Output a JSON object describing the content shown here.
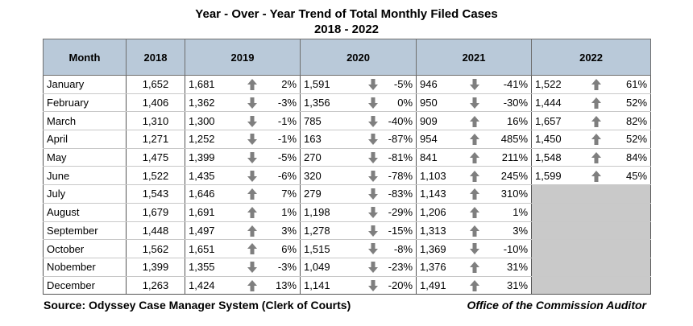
{
  "title": "Year - Over - Year Trend of Total Monthly Filed Cases",
  "subtitle": "2018 - 2022",
  "source": "Source: Odyssey Case Manager System (Clerk of Courts)",
  "auditor": "Office of the Commission Auditor",
  "colors": {
    "header_bg": "#b9c9d9",
    "arrow": "#7f7f7f",
    "blank_cell": "#c9c9c9"
  },
  "chart_data": {
    "type": "table",
    "columns": [
      "Month",
      "2018",
      "2019",
      "2020",
      "2021",
      "2022"
    ],
    "rows": [
      {
        "month": "January",
        "2018": "1,652",
        "2019": {
          "v": "1,681",
          "dir": "up",
          "pct": "2%"
        },
        "2020": {
          "v": "1,591",
          "dir": "down",
          "pct": "-5%"
        },
        "2021": {
          "v": "946",
          "dir": "down",
          "pct": "-41%"
        },
        "2022": {
          "v": "1,522",
          "dir": "up",
          "pct": "61%"
        }
      },
      {
        "month": "February",
        "2018": "1,406",
        "2019": {
          "v": "1,362",
          "dir": "down",
          "pct": "-3%"
        },
        "2020": {
          "v": "1,356",
          "dir": "down",
          "pct": "0%"
        },
        "2021": {
          "v": "950",
          "dir": "down",
          "pct": "-30%"
        },
        "2022": {
          "v": "1,444",
          "dir": "up",
          "pct": "52%"
        }
      },
      {
        "month": "March",
        "2018": "1,310",
        "2019": {
          "v": "1,300",
          "dir": "down",
          "pct": "-1%"
        },
        "2020": {
          "v": "785",
          "dir": "down",
          "pct": "-40%"
        },
        "2021": {
          "v": "909",
          "dir": "up",
          "pct": "16%"
        },
        "2022": {
          "v": "1,657",
          "dir": "up",
          "pct": "82%"
        }
      },
      {
        "month": "April",
        "2018": "1,271",
        "2019": {
          "v": "1,252",
          "dir": "down",
          "pct": "-1%"
        },
        "2020": {
          "v": "163",
          "dir": "down",
          "pct": "-87%"
        },
        "2021": {
          "v": "954",
          "dir": "up",
          "pct": "485%"
        },
        "2022": {
          "v": "1,450",
          "dir": "up",
          "pct": "52%"
        }
      },
      {
        "month": "May",
        "2018": "1,475",
        "2019": {
          "v": "1,399",
          "dir": "down",
          "pct": "-5%"
        },
        "2020": {
          "v": "270",
          "dir": "down",
          "pct": "-81%"
        },
        "2021": {
          "v": "841",
          "dir": "up",
          "pct": "211%"
        },
        "2022": {
          "v": "1,548",
          "dir": "up",
          "pct": "84%"
        }
      },
      {
        "month": "June",
        "2018": "1,522",
        "2019": {
          "v": "1,435",
          "dir": "down",
          "pct": "-6%"
        },
        "2020": {
          "v": "320",
          "dir": "down",
          "pct": "-78%"
        },
        "2021": {
          "v": "1,103",
          "dir": "up",
          "pct": "245%"
        },
        "2022": {
          "v": "1,599",
          "dir": "up",
          "pct": "45%"
        }
      },
      {
        "month": "July",
        "2018": "1,543",
        "2019": {
          "v": "1,646",
          "dir": "up",
          "pct": "7%"
        },
        "2020": {
          "v": "279",
          "dir": "down",
          "pct": "-83%"
        },
        "2021": {
          "v": "1,143",
          "dir": "up",
          "pct": "310%"
        },
        "2022": null
      },
      {
        "month": "August",
        "2018": "1,679",
        "2019": {
          "v": "1,691",
          "dir": "up",
          "pct": "1%"
        },
        "2020": {
          "v": "1,198",
          "dir": "down",
          "pct": "-29%"
        },
        "2021": {
          "v": "1,206",
          "dir": "up",
          "pct": "1%"
        },
        "2022": null
      },
      {
        "month": "September",
        "2018": "1,448",
        "2019": {
          "v": "1,497",
          "dir": "up",
          "pct": "3%"
        },
        "2020": {
          "v": "1,278",
          "dir": "down",
          "pct": "-15%"
        },
        "2021": {
          "v": "1,313",
          "dir": "up",
          "pct": "3%"
        },
        "2022": null
      },
      {
        "month": "October",
        "2018": "1,562",
        "2019": {
          "v": "1,651",
          "dir": "up",
          "pct": "6%"
        },
        "2020": {
          "v": "1,515",
          "dir": "down",
          "pct": "-8%"
        },
        "2021": {
          "v": "1,369",
          "dir": "down",
          "pct": "-10%"
        },
        "2022": null
      },
      {
        "month": "Nobember",
        "2018": "1,399",
        "2019": {
          "v": "1,355",
          "dir": "down",
          "pct": "-3%"
        },
        "2020": {
          "v": "1,049",
          "dir": "down",
          "pct": "-23%"
        },
        "2021": {
          "v": "1,376",
          "dir": "up",
          "pct": "31%"
        },
        "2022": null
      },
      {
        "month": "December",
        "2018": "1,263",
        "2019": {
          "v": "1,424",
          "dir": "up",
          "pct": "13%"
        },
        "2020": {
          "v": "1,141",
          "dir": "down",
          "pct": "-20%"
        },
        "2021": {
          "v": "1,491",
          "dir": "up",
          "pct": "31%"
        },
        "2022": null
      }
    ]
  }
}
